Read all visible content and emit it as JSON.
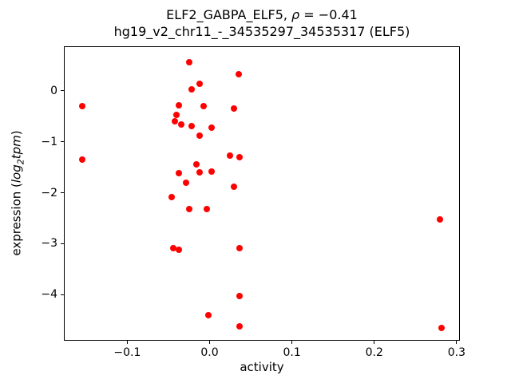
{
  "chart_data": {
    "type": "scatter",
    "title": {
      "prefix": "ELF2_GABPA_ELF5, ",
      "rho": "ρ",
      "suffix": " = −0.41",
      "line2": "hg19_v2_chr11_-_34535297_34535317 (ELF5)"
    },
    "xlabel": "activity",
    "ylabel": {
      "prefix": "expression (",
      "log": "log",
      "sub": "2",
      "var": "tpm",
      "suffix": ")"
    },
    "xlim": [
      -0.177,
      0.304
    ],
    "ylim": [
      -4.9,
      0.87
    ],
    "xticks": [
      -0.1,
      0.0,
      0.1,
      0.2,
      0.3
    ],
    "xtick_labels": [
      "−0.1",
      "0.0",
      "0.1",
      "0.2",
      "0.3"
    ],
    "yticks": [
      0,
      -1,
      -2,
      -3,
      -4
    ],
    "ytick_labels": [
      "0",
      "−1",
      "−2",
      "−3",
      "−4"
    ],
    "grid": false,
    "legend": null,
    "marker_color": "#ff0000",
    "points": [
      [
        -0.155,
        -0.3
      ],
      [
        -0.155,
        -1.35
      ],
      [
        -0.025,
        0.55
      ],
      [
        -0.022,
        0.03
      ],
      [
        -0.012,
        0.13
      ],
      [
        0.035,
        0.33
      ],
      [
        -0.037,
        -0.28
      ],
      [
        -0.007,
        -0.3
      ],
      [
        0.03,
        -0.35
      ],
      [
        -0.04,
        -0.48
      ],
      [
        -0.042,
        -0.6
      ],
      [
        -0.034,
        -0.67
      ],
      [
        -0.022,
        -0.7
      ],
      [
        0.002,
        -0.72
      ],
      [
        -0.012,
        -0.88
      ],
      [
        0.025,
        -1.28
      ],
      [
        0.036,
        -1.3
      ],
      [
        -0.016,
        -1.44
      ],
      [
        0.002,
        -1.58
      ],
      [
        -0.012,
        -1.6
      ],
      [
        -0.037,
        -1.62
      ],
      [
        -0.029,
        -1.8
      ],
      [
        0.03,
        -1.88
      ],
      [
        -0.046,
        -2.08
      ],
      [
        -0.025,
        -2.32
      ],
      [
        -0.003,
        -2.32
      ],
      [
        0.28,
        -2.52
      ],
      [
        -0.044,
        -3.08
      ],
      [
        -0.037,
        -3.12
      ],
      [
        0.036,
        -3.08
      ],
      [
        0.036,
        -4.03
      ],
      [
        -0.001,
        -4.4
      ],
      [
        0.036,
        -4.62
      ],
      [
        0.282,
        -4.65
      ]
    ]
  }
}
